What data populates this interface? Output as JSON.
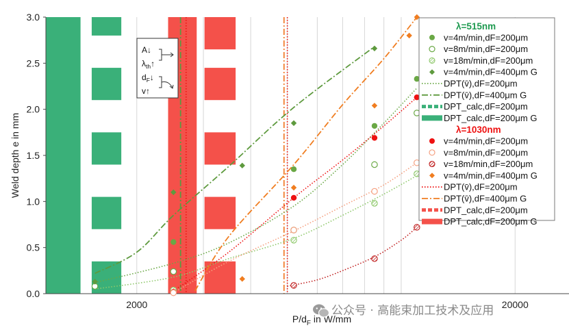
{
  "chart_data": {
    "type": "scatter",
    "xlabel": "P/d_F in W/mm",
    "ylabel": "Weld depth e in mm",
    "xscale": "log",
    "xlim": [
      1150,
      28000
    ],
    "ylim": [
      0,
      3.0
    ],
    "xticks": [
      {
        "value": 2000,
        "label": "2000"
      },
      {
        "value": 20000,
        "label": "20000"
      }
    ],
    "yticks": [
      0.0,
      0.5,
      1.0,
      1.5,
      2.0,
      2.5,
      3.0
    ],
    "ytick_labels": [
      "0.0",
      "0.5",
      "1.0",
      "1.5",
      "2.0",
      "2.5",
      "3.0"
    ],
    "grid": "vertical",
    "legend_position": "right",
    "group_headers": [
      {
        "label": "λ=515nm",
        "color": "#1e9a50"
      },
      {
        "label": "λ=1030nm",
        "color": "#ee1111"
      }
    ],
    "annotation": {
      "lines": [
        {
          "main": "A",
          "sub": "",
          "arrow": "↓"
        },
        {
          "main": "λ",
          "sub": "th",
          "arrow": "↑"
        },
        {
          "main": "d",
          "sub": "F",
          "arrow": "↓"
        },
        {
          "main": "v",
          "sub": "",
          "arrow": "↑"
        }
      ]
    },
    "bands": [
      {
        "group": "515nm",
        "color": "#3ab079",
        "x_range": [
          1150,
          1420
        ],
        "segments": [
          [
            0,
            3.0
          ]
        ]
      },
      {
        "group": "515nm",
        "color": "#3ab079",
        "x_range": [
          1520,
          1820
        ],
        "segments": [
          [
            0,
            0.35
          ],
          [
            0.7,
            1.05
          ],
          [
            1.4,
            1.75
          ],
          [
            2.1,
            2.45
          ],
          [
            2.8,
            3.0
          ]
        ]
      },
      {
        "group": "1030nm",
        "color": "#f4514a",
        "x_range": [
          2420,
          2880
        ],
        "segments": [
          [
            0,
            3.0
          ]
        ]
      },
      {
        "group": "1030nm",
        "color": "#f4514a",
        "x_range": [
          3020,
          3650
        ],
        "segments": [
          [
            0,
            0.35
          ],
          [
            0.7,
            1.05
          ],
          [
            1.4,
            1.75
          ],
          [
            2.1,
            2.45
          ],
          [
            2.65,
            3.0
          ]
        ]
      }
    ],
    "threshold_lines": [
      {
        "x": 2610,
        "color": "#5a9a40",
        "dash": "dashdot",
        "width": 1.8
      },
      {
        "x": 2700,
        "color": "#ee1111",
        "dash": "dot",
        "width": 1.6
      },
      {
        "x": 4900,
        "color": "#f0701a",
        "dash": "dashdot",
        "width": 1.6
      },
      {
        "x": 5000,
        "color": "#ee1111",
        "dash": "dot",
        "width": 1.6
      }
    ],
    "series": [
      {
        "name": "v=4m/min,dF=200μm",
        "marker": "circle-filled",
        "color": "#6aa845",
        "points": [
          [
            2500,
            0.56
          ],
          [
            5200,
            1.35
          ],
          [
            8500,
            1.82
          ],
          [
            11000,
            2.33
          ]
        ]
      },
      {
        "name": "v=8m/min,dF=200μm",
        "marker": "circle-open",
        "color": "#6aa845",
        "points": [
          [
            1550,
            0.08
          ],
          [
            2500,
            0.24
          ],
          [
            5200,
            0.69
          ],
          [
            8500,
            1.4
          ],
          [
            11000,
            1.96
          ]
        ]
      },
      {
        "name": "v=18m/min,dF=200μm",
        "marker": "circle-hatched",
        "color": "#8ec86a",
        "points": [
          [
            2500,
            0.04
          ],
          [
            5200,
            0.58
          ],
          [
            8500,
            0.98
          ],
          [
            11000,
            1.3
          ]
        ]
      },
      {
        "name": "v=4m/min,dF=400μm G",
        "marker": "diamond",
        "color": "#5e9a3e",
        "points": [
          [
            1550,
            0.13
          ],
          [
            2500,
            1.1
          ],
          [
            3800,
            1.39
          ],
          [
            5200,
            1.85
          ],
          [
            8500,
            2.66
          ]
        ]
      },
      {
        "name": "DPT(v̄),dF=200μm",
        "line": "dot",
        "color": "#6aa845",
        "curve": [
          [
            1550,
            0.12
          ],
          [
            2500,
            0.33
          ],
          [
            3500,
            0.55
          ],
          [
            5200,
            0.95
          ],
          [
            7000,
            1.4
          ],
          [
            9000,
            1.85
          ],
          [
            11000,
            2.23
          ]
        ]
      },
      {
        "name": "DPT(v̄),dF=400μm G",
        "line": "dashdot",
        "color": "#5e9a3e",
        "curve": [
          [
            1550,
            0.22
          ],
          [
            2000,
            0.45
          ],
          [
            2500,
            0.85
          ],
          [
            3500,
            1.38
          ],
          [
            5200,
            2.02
          ],
          [
            8500,
            2.68
          ]
        ]
      },
      {
        "name": "DPT_calc,dF=200μm",
        "line": "thick-dash",
        "color": "#3ab079"
      },
      {
        "name": "DPT_calc,dF=200μm G",
        "line": "band",
        "color": "#3ab079"
      },
      {
        "name": "v=4m/min,dF=200μm",
        "marker": "circle-filled",
        "color": "#ee1111",
        "points": [
          [
            2500,
            0.02
          ],
          [
            5200,
            1.04
          ],
          [
            8500,
            1.69
          ],
          [
            11000,
            2.13
          ]
        ]
      },
      {
        "name": "v=8m/min,dF=200μm",
        "marker": "circle-open",
        "color": "#f5a080",
        "points": [
          [
            2500,
            0.01
          ],
          [
            5200,
            0.69
          ],
          [
            8500,
            1.11
          ],
          [
            11000,
            1.42
          ]
        ]
      },
      {
        "name": "v=18m/min,dF=200μm",
        "marker": "circle-hatched",
        "color": "#c02020",
        "points": [
          [
            5200,
            0.09
          ],
          [
            8500,
            0.38
          ],
          [
            11000,
            0.72
          ]
        ]
      },
      {
        "name": "v=4m/min,dF=400μm G",
        "marker": "diamond",
        "color": "#f07d20",
        "points": [
          [
            3800,
            0.16
          ],
          [
            5200,
            1.15
          ],
          [
            8500,
            2.04
          ],
          [
            10500,
            2.8
          ],
          [
            11000,
            3.0
          ]
        ]
      },
      {
        "name": "DPT(v̄),dF=200μm",
        "line": "dot",
        "color": "#ee1111",
        "curve": [
          [
            2500,
            0.03
          ],
          [
            3500,
            0.45
          ],
          [
            5200,
            1.04
          ],
          [
            7000,
            1.45
          ],
          [
            9000,
            1.82
          ],
          [
            11000,
            2.13
          ]
        ]
      },
      {
        "name": "DPT(v̄),dF=400μm G",
        "line": "dashdot",
        "color": "#f07d20",
        "curve": [
          [
            2850,
            0.03
          ],
          [
            3500,
            0.62
          ],
          [
            5200,
            1.4
          ],
          [
            7000,
            2.05
          ],
          [
            9000,
            2.55
          ],
          [
            11000,
            3.0
          ]
        ]
      },
      {
        "name": "DPT_calc,dF=200μm",
        "line": "thick-dash",
        "color": "#f4514a"
      },
      {
        "name": "DPT_calc,dF=200μm G",
        "line": "band",
        "color": "#f4514a"
      }
    ],
    "extra_curves": [
      {
        "line": "dot",
        "color": "#8ec86a",
        "curve": [
          [
            1550,
            0.05
          ],
          [
            2500,
            0.18
          ],
          [
            3500,
            0.38
          ],
          [
            5200,
            0.6
          ],
          [
            7000,
            0.85
          ],
          [
            9000,
            1.08
          ],
          [
            11000,
            1.28
          ]
        ]
      },
      {
        "line": "dot",
        "color": "#f5a080",
        "curve": [
          [
            2500,
            0.01
          ],
          [
            3500,
            0.35
          ],
          [
            5200,
            0.68
          ],
          [
            7000,
            0.95
          ],
          [
            9000,
            1.18
          ],
          [
            11000,
            1.42
          ]
        ]
      },
      {
        "line": "dot",
        "color": "#c02020",
        "curve": [
          [
            5000,
            0.08
          ],
          [
            6000,
            0.15
          ],
          [
            7000,
            0.25
          ],
          [
            8500,
            0.4
          ],
          [
            10000,
            0.58
          ],
          [
            11000,
            0.72
          ]
        ]
      }
    ]
  },
  "watermark": {
    "icon": "wechat-icon",
    "text": "公众号 · 高能束加工技术及应用"
  }
}
